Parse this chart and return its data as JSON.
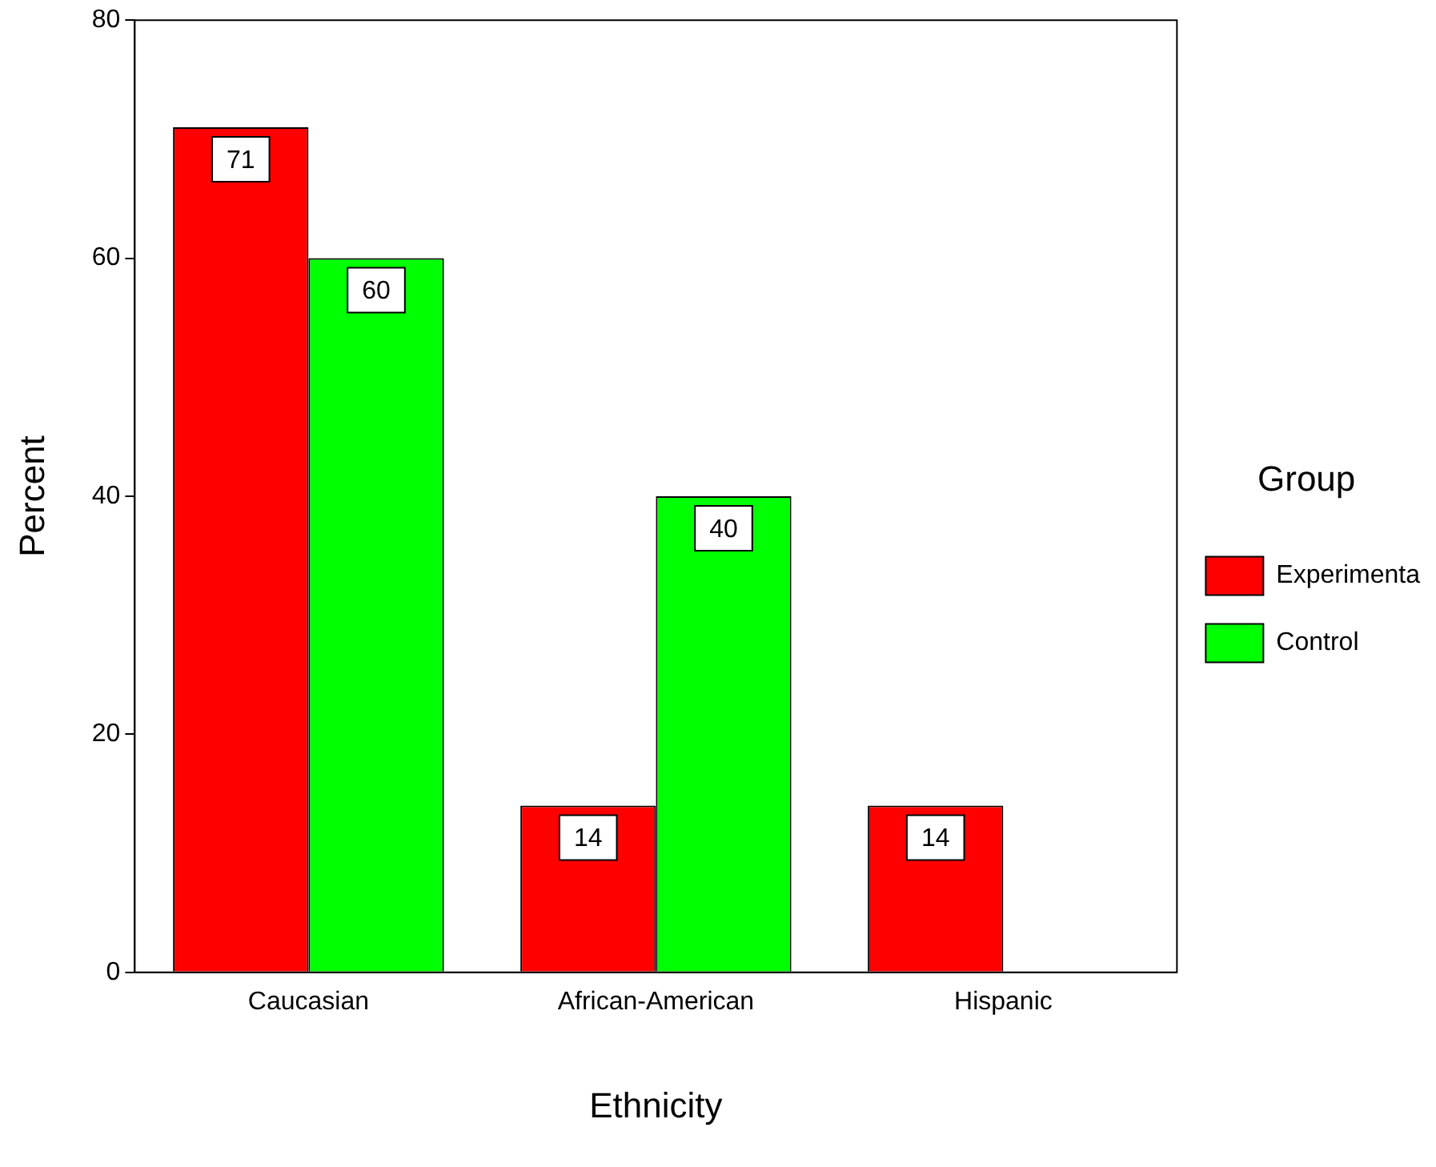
{
  "chart_data": {
    "type": "bar",
    "xlabel": "Ethnicity",
    "ylabel": "Percent",
    "legend_title": "Group",
    "categories": [
      "Caucasian",
      "African-American",
      "Hispanic"
    ],
    "series": [
      {
        "name": "Experimenta",
        "color": "#ff0000",
        "values": [
          71,
          14,
          14
        ]
      },
      {
        "name": "Control",
        "color": "#00ff00",
        "values": [
          60,
          40,
          null
        ]
      }
    ],
    "ylim": [
      0,
      80
    ],
    "yticks": [
      0,
      20,
      40,
      60,
      80
    ],
    "grid": false,
    "legend": "right",
    "data_labels": true
  }
}
